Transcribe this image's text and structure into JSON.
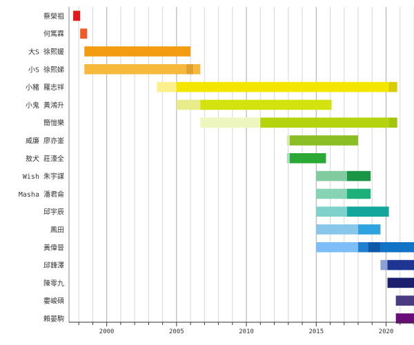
{
  "chart_data": {
    "type": "bar",
    "title": "",
    "xlabel": "",
    "ylabel": "",
    "xlim": [
      1997.3,
      2022
    ],
    "grid": true,
    "x_ticks": [
      "2000",
      "2005",
      "2010",
      "2015",
      "2020"
    ],
    "tick_values": [
      2000,
      2005,
      2010,
      2015,
      2020
    ],
    "rows": [
      {
        "label": "蔡榮祖",
        "segments": [
          {
            "start": 1997.6,
            "end": 1998.1,
            "color": "#e31a1c"
          }
        ]
      },
      {
        "label": "何篤霖",
        "segments": [
          {
            "start": 1998.1,
            "end": 1998.6,
            "color": "#f05a28"
          }
        ]
      },
      {
        "label": "大S 徐熙媛",
        "segments": [
          {
            "start": 1998.4,
            "end": 2006.0,
            "color": "#f39c12"
          }
        ]
      },
      {
        "label": "小S 徐熙娣",
        "segments": [
          {
            "start": 1998.4,
            "end": 2005.7,
            "color": "#f6b93b"
          },
          {
            "start": 2005.7,
            "end": 2006.2,
            "color": "#e0a030"
          },
          {
            "start": 2006.2,
            "end": 2006.7,
            "color": "#f6b93b"
          }
        ]
      },
      {
        "label": "小豬 羅志祥",
        "segments": [
          {
            "start": 2003.6,
            "end": 2005.0,
            "color": "#fbf08c"
          },
          {
            "start": 2005.0,
            "end": 2020.2,
            "color": "#f5e600"
          },
          {
            "start": 2020.2,
            "end": 2020.8,
            "color": "#d9cc00"
          }
        ]
      },
      {
        "label": "小鬼 黃鴻升",
        "segments": [
          {
            "start": 2005.0,
            "end": 2006.7,
            "color": "#e9ec8a"
          },
          {
            "start": 2006.7,
            "end": 2016.1,
            "color": "#d4e20f"
          }
        ]
      },
      {
        "label": "簡愷樂",
        "segments": [
          {
            "start": 2006.7,
            "end": 2011.0,
            "color": "#eef6c0"
          },
          {
            "start": 2011.0,
            "end": 2020.2,
            "color": "#b5d30f"
          },
          {
            "start": 2020.2,
            "end": 2020.8,
            "color": "#a5c40c"
          }
        ]
      },
      {
        "label": "威廉 廖亦崟",
        "segments": [
          {
            "start": 2012.9,
            "end": 2013.1,
            "color": "#d8e8a8"
          },
          {
            "start": 2013.1,
            "end": 2018.0,
            "color": "#8bbd24"
          }
        ]
      },
      {
        "label": "敖犬 莊濠全",
        "segments": [
          {
            "start": 2012.9,
            "end": 2013.1,
            "color": "#a8dcc0"
          },
          {
            "start": 2013.1,
            "end": 2015.7,
            "color": "#2ca836"
          }
        ]
      },
      {
        "label": "Wish 朱宇謀",
        "segments": [
          {
            "start": 2015.0,
            "end": 2017.2,
            "color": "#80cca0"
          },
          {
            "start": 2017.2,
            "end": 2018.9,
            "color": "#1a9545"
          }
        ]
      },
      {
        "label": "Masha 潘君侖",
        "segments": [
          {
            "start": 2015.0,
            "end": 2017.2,
            "color": "#86d4b4"
          },
          {
            "start": 2017.2,
            "end": 2018.9,
            "color": "#1db07a"
          }
        ]
      },
      {
        "label": "邱宇辰",
        "segments": [
          {
            "start": 2015.0,
            "end": 2017.2,
            "color": "#7fd2cc"
          },
          {
            "start": 2017.2,
            "end": 2020.2,
            "color": "#12a69c"
          }
        ]
      },
      {
        "label": "鳳田",
        "segments": [
          {
            "start": 2015.0,
            "end": 2018.0,
            "color": "#88c6ea"
          },
          {
            "start": 2018.0,
            "end": 2019.6,
            "color": "#2ea3e0"
          }
        ]
      },
      {
        "label": "黃偉晉",
        "segments": [
          {
            "start": 2015.0,
            "end": 2018.0,
            "color": "#7dbef8"
          },
          {
            "start": 2018.0,
            "end": 2018.7,
            "color": "#1f7fd0"
          },
          {
            "start": 2018.7,
            "end": 2019.6,
            "color": "#0d5aa8"
          },
          {
            "start": 2019.6,
            "end": 2022.0,
            "color": "#1173c6"
          }
        ]
      },
      {
        "label": "邱鋒澤",
        "segments": [
          {
            "start": 2019.6,
            "end": 2020.1,
            "color": "#8da0d4"
          },
          {
            "start": 2020.1,
            "end": 2022.0,
            "color": "#1e3594"
          }
        ]
      },
      {
        "label": "陳零九",
        "segments": [
          {
            "start": 2020.1,
            "end": 2022.0,
            "color": "#1b1f6e"
          }
        ]
      },
      {
        "label": "婁峻碩",
        "segments": [
          {
            "start": 2020.7,
            "end": 2022.0,
            "color": "#4a3a82"
          }
        ]
      },
      {
        "label": "賴晏駒",
        "segments": [
          {
            "start": 2020.7,
            "end": 2022.0,
            "color": "#6a0c7a"
          }
        ]
      }
    ]
  }
}
